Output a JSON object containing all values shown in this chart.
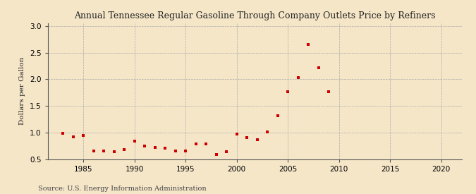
{
  "title": "Annual Tennessee Regular Gasoline Through Company Outlets Price by Refiners",
  "ylabel": "Dollars per Gallon",
  "source": "Source: U.S. Energy Information Administration",
  "background_color": "#f5e6c8",
  "marker_color": "#cc0000",
  "xlim": [
    1981.5,
    2022
  ],
  "ylim": [
    0.5,
    3.05
  ],
  "xticks": [
    1985,
    1990,
    1995,
    2000,
    2005,
    2010,
    2015,
    2020
  ],
  "yticks": [
    0.5,
    1.0,
    1.5,
    2.0,
    2.5,
    3.0
  ],
  "years": [
    1983,
    1984,
    1985,
    1986,
    1987,
    1988,
    1989,
    1990,
    1991,
    1992,
    1993,
    1994,
    1995,
    1996,
    1997,
    1998,
    1999,
    2000,
    2001,
    2002,
    2003,
    2004,
    2005,
    2006,
    2007,
    2008,
    2009
  ],
  "values": [
    0.99,
    0.92,
    0.94,
    0.65,
    0.65,
    0.64,
    0.68,
    0.84,
    0.75,
    0.72,
    0.71,
    0.65,
    0.65,
    0.78,
    0.78,
    0.59,
    0.64,
    0.97,
    0.9,
    0.86,
    1.01,
    1.31,
    1.77,
    2.03,
    2.65,
    2.22,
    1.76
  ]
}
